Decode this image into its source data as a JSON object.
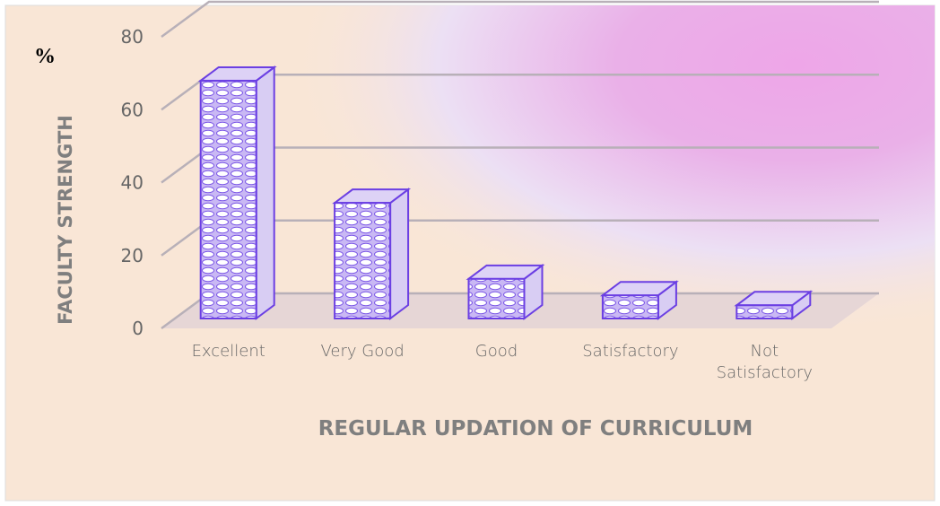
{
  "chart_data": {
    "type": "bar3d",
    "title": "%",
    "y_label": "FACULTY STRENGTH",
    "x_label": "REGULAR UPDATION OF CURRICULUM",
    "categories": [
      "Excellent",
      "Very Good",
      "Good",
      "Satisfactory",
      "Not Satisfactory"
    ],
    "values": [
      72,
      35,
      12,
      7,
      4
    ],
    "color": "#6b3fe3",
    "ylim": [
      0,
      80
    ],
    "yticks": [
      0,
      20,
      40,
      60,
      80
    ],
    "grid": true
  }
}
